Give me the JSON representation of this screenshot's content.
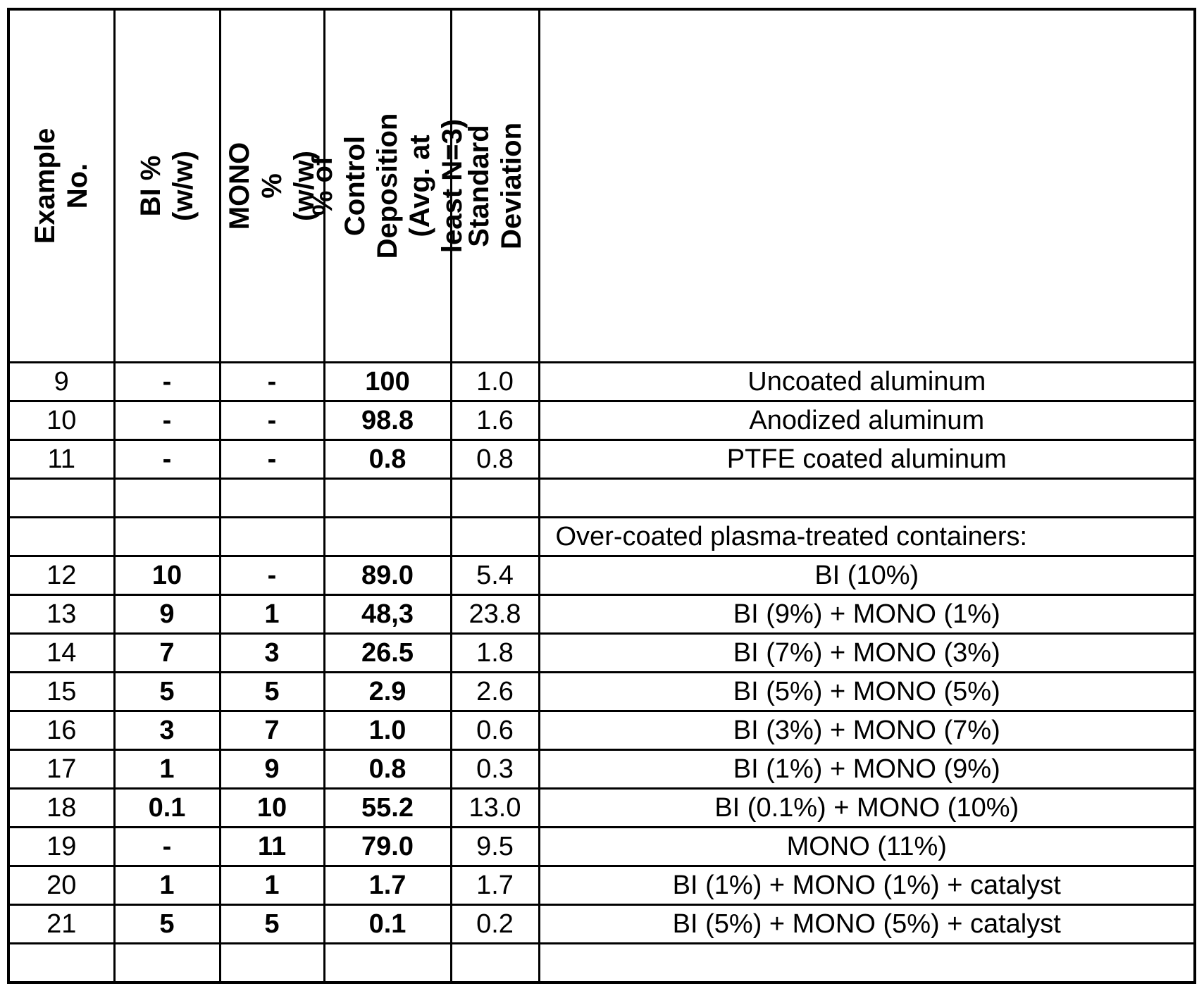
{
  "page": {
    "background_color": "#ffffff",
    "text_color": "#000000",
    "border_color": "#000000"
  },
  "table": {
    "columns": [
      {
        "key": "example",
        "label": "Example No."
      },
      {
        "key": "bi",
        "label": "BI % (w/w)"
      },
      {
        "key": "mono",
        "label": "MONO % (w/w)"
      },
      {
        "key": "deposition",
        "label": "% of Control Deposition\n(Avg. at least N=3)"
      },
      {
        "key": "stddev",
        "label": "Standard Deviation"
      },
      {
        "key": "description",
        "label": ""
      }
    ],
    "rows": [
      {
        "example": "9",
        "bi": "-",
        "mono": "-",
        "deposition": "100",
        "stddev": "1.0",
        "description": "Uncoated aluminum"
      },
      {
        "example": "10",
        "bi": "-",
        "mono": "-",
        "deposition": "98.8",
        "stddev": "1.6",
        "description": "Anodized aluminum"
      },
      {
        "example": "11",
        "bi": "-",
        "mono": "-",
        "deposition": "0.8",
        "stddev": "0.8",
        "description": "PTFE coated aluminum"
      },
      {
        "example": "",
        "bi": "",
        "mono": "",
        "deposition": "",
        "stddev": "",
        "description": ""
      },
      {
        "example": "",
        "bi": "",
        "mono": "",
        "deposition": "",
        "stddev": "",
        "description": "Over-coated plasma-treated containers:",
        "description_align": "left"
      },
      {
        "example": "12",
        "bi": "10",
        "mono": "-",
        "deposition": "89.0",
        "stddev": "5.4",
        "description": "BI (10%)"
      },
      {
        "example": "13",
        "bi": "9",
        "mono": "1",
        "deposition": "48,3",
        "stddev": "23.8",
        "description": "BI (9%) + MONO (1%)"
      },
      {
        "example": "14",
        "bi": "7",
        "mono": "3",
        "deposition": "26.5",
        "stddev": "1.8",
        "description": "BI (7%) + MONO (3%)"
      },
      {
        "example": "15",
        "bi": "5",
        "mono": "5",
        "deposition": "2.9",
        "stddev": "2.6",
        "description": "BI (5%) + MONO (5%)"
      },
      {
        "example": "16",
        "bi": "3",
        "mono": "7",
        "deposition": "1.0",
        "stddev": "0.6",
        "description": "BI (3%) + MONO (7%)"
      },
      {
        "example": "17",
        "bi": "1",
        "mono": "9",
        "deposition": "0.8",
        "stddev": "0.3",
        "description": "BI (1%) + MONO (9%)"
      },
      {
        "example": "18",
        "bi": "0.1",
        "mono": "10",
        "deposition": "55.2",
        "stddev": "13.0",
        "description": "BI (0.1%) + MONO (10%)"
      },
      {
        "example": "19",
        "bi": "-",
        "mono": "11",
        "deposition": "79.0",
        "stddev": "9.5",
        "description": "MONO (11%)"
      },
      {
        "example": "20",
        "bi": "1",
        "mono": "1",
        "deposition": "1.7",
        "stddev": "1.7",
        "description": "BI (1%) + MONO (1%) + catalyst"
      },
      {
        "example": "21",
        "bi": "5",
        "mono": "5",
        "deposition": "0.1",
        "stddev": "0.2",
        "description": "BI (5%) + MONO (5%) + catalyst"
      },
      {
        "example": "",
        "bi": "",
        "mono": "",
        "deposition": "",
        "stddev": "",
        "description": ""
      }
    ]
  }
}
